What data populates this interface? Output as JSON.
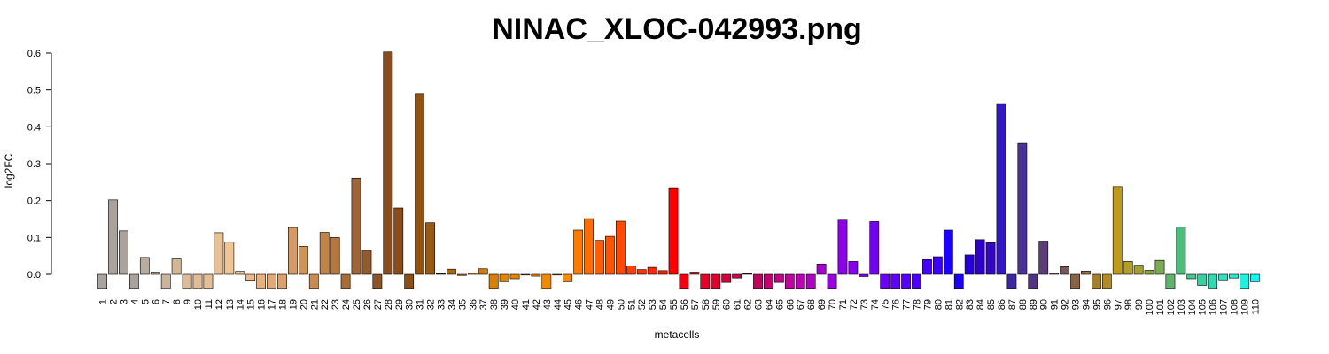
{
  "chart_data": {
    "type": "bar",
    "title": "NINAC_XLOC-042993.png",
    "xlabel": "metacells",
    "ylabel": "log2FC",
    "ylim": [
      -0.04,
      0.6
    ],
    "yticks": [
      0.0,
      0.1,
      0.2,
      0.3,
      0.4,
      0.5,
      0.6
    ],
    "ytick_labels": [
      "0.0",
      "0.1",
      "0.2",
      "0.3",
      "0.4",
      "0.5",
      "0.6"
    ],
    "grid": false,
    "legend": "none",
    "categories": [
      "1",
      "2",
      "3",
      "4",
      "5",
      "6",
      "7",
      "8",
      "9",
      "10",
      "11",
      "12",
      "13",
      "14",
      "15",
      "16",
      "17",
      "18",
      "19",
      "20",
      "21",
      "22",
      "23",
      "24",
      "25",
      "26",
      "27",
      "28",
      "29",
      "30",
      "31",
      "32",
      "33",
      "34",
      "35",
      "36",
      "37",
      "38",
      "39",
      "40",
      "41",
      "42",
      "43",
      "44",
      "45",
      "46",
      "47",
      "48",
      "49",
      "50",
      "51",
      "52",
      "53",
      "54",
      "55",
      "56",
      "57",
      "58",
      "59",
      "60",
      "61",
      "62",
      "63",
      "64",
      "65",
      "66",
      "67",
      "68",
      "69",
      "70",
      "71",
      "72",
      "73",
      "74",
      "75",
      "76",
      "77",
      "78",
      "79",
      "80",
      "81",
      "82",
      "83",
      "84",
      "85",
      "86",
      "87",
      "88",
      "89",
      "90",
      "91",
      "92",
      "93",
      "94",
      "95",
      "96",
      "97",
      "98",
      "99",
      "100",
      "101",
      "102",
      "103",
      "104",
      "105",
      "106",
      "107",
      "108",
      "109",
      "110"
    ],
    "values": [
      -0.038,
      0.202,
      0.118,
      -0.038,
      0.046,
      0.006,
      -0.038,
      0.042,
      -0.038,
      -0.038,
      -0.038,
      0.113,
      0.087,
      0.008,
      -0.016,
      -0.038,
      -0.038,
      -0.038,
      0.127,
      0.076,
      -0.038,
      0.114,
      0.1,
      -0.038,
      0.261,
      0.065,
      -0.038,
      0.603,
      0.18,
      -0.038,
      0.49,
      0.14,
      0.002,
      0.014,
      -0.003,
      0.004,
      0.015,
      -0.038,
      -0.02,
      -0.012,
      -0.002,
      -0.005,
      -0.038,
      -0.002,
      -0.02,
      0.12,
      0.151,
      0.092,
      0.103,
      0.144,
      0.023,
      0.013,
      0.019,
      0.01,
      0.235,
      -0.038,
      0.006,
      -0.038,
      -0.038,
      -0.022,
      -0.01,
      0.002,
      -0.038,
      -0.038,
      -0.022,
      -0.038,
      -0.038,
      -0.038,
      0.028,
      -0.038,
      0.147,
      0.035,
      -0.006,
      0.143,
      -0.038,
      -0.038,
      -0.038,
      -0.038,
      0.04,
      0.048,
      0.12,
      -0.038,
      0.053,
      0.094,
      0.086,
      0.463,
      -0.038,
      0.355,
      -0.038,
      0.09,
      0.003,
      0.021,
      -0.038,
      0.009,
      -0.038,
      -0.038,
      0.238,
      0.035,
      0.025,
      0.011,
      0.038,
      -0.038,
      0.128,
      -0.012,
      -0.03,
      -0.038,
      -0.015,
      -0.01,
      -0.038,
      -0.02
    ],
    "colors": [
      "#aaa39d",
      "#aaa39d",
      "#aaa39d",
      "#aaa39d",
      "#b8ab9f",
      "#c4b09f",
      "#cbb39d",
      "#d3b695",
      "#ddbb96",
      "#e1bc94",
      "#e4be95",
      "#e8c195",
      "#f0c593",
      "#f1c493",
      "#eeb888",
      "#e8b07e",
      "#e2a875",
      "#dba06b",
      "#d59a65",
      "#cf9458",
      "#c98c50",
      "#c08348",
      "#b5773e",
      "#a86c38",
      "#a06435",
      "#955a2c",
      "#8e5426",
      "#8a4c1b",
      "#8b4c18",
      "#8d4e14",
      "#94520f",
      "#9c580c",
      "#a2600b",
      "#b2680a",
      "#bd6f07",
      "#c67506",
      "#d47a04",
      "#dc7e02",
      "#e38300",
      "#e78500",
      "#ec8700",
      "#f08900",
      "#f28a00",
      "#f78c00",
      "#fb8b00",
      "#fe7b00",
      "#ff6c00",
      "#fe5d03",
      "#fe5204",
      "#ff4a05",
      "#ff3f07",
      "#ff3308",
      "#ff2809",
      "#ff1d0b",
      "#ff0000",
      "#f60010",
      "#ee001c",
      "#e60026",
      "#e0002b",
      "#d8003b",
      "#cf0047",
      "#c90050",
      "#c5005c",
      "#c40070",
      "#c40088",
      "#c300a0",
      "#bf00b4",
      "#b000c6",
      "#a500d5",
      "#9800e0",
      "#8f00ea",
      "#8700ee",
      "#7e00f1",
      "#7400f2",
      "#6a00f4",
      "#6000f6",
      "#5600f7",
      "#4c00f8",
      "#4300fa",
      "#3a00fc",
      "#1c00ff",
      "#1b00f2",
      "#2600d6",
      "#2f00c8",
      "#3606c6",
      "#3217c4",
      "#3c26a4",
      "#4a309a",
      "#503383",
      "#5c3c7a",
      "#6a4a6c",
      "#7a5458",
      "#8a6244",
      "#97703a",
      "#a47e2a",
      "#b38b20",
      "#c09b18",
      "#b39d22",
      "#a69e2c",
      "#8ea440",
      "#7aaa52",
      "#5fb46a",
      "#4cbe7c",
      "#40c88e",
      "#38d0a0",
      "#34d8b0",
      "#30e0c0",
      "#2ce8d0",
      "#20f0e0",
      "#10f8f0"
    ]
  }
}
